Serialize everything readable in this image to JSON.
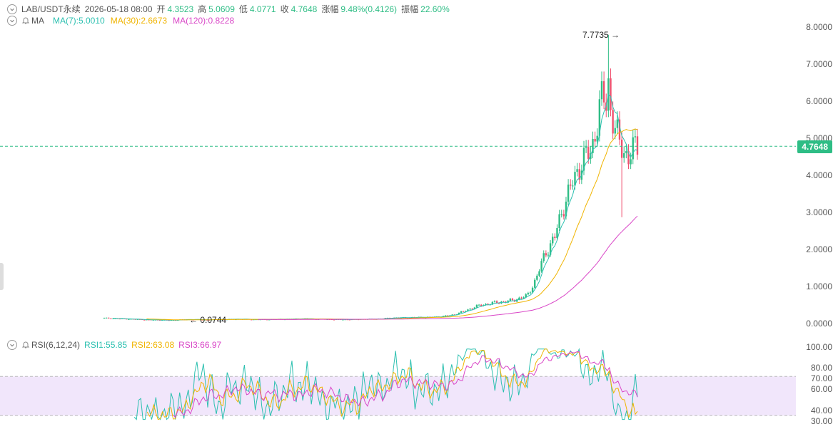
{
  "header": {
    "symbol": "LAB/USDT永续",
    "datetime": "2026-05-18 08:00",
    "open_label": "开",
    "open": "4.3523",
    "high_label": "高",
    "high": "5.0609",
    "low_label": "低",
    "low": "4.0771",
    "close_label": "收",
    "close": "4.7648",
    "change_label": "涨幅",
    "change": "9.48%(0.4126)",
    "amplitude_label": "振幅",
    "amplitude": "22.60%"
  },
  "ma": {
    "label": "MA",
    "ma7": "MA(7):5.0010",
    "ma30": "MA(30):2.6673",
    "ma120": "MA(120):0.8228"
  },
  "rsi": {
    "label": "RSI(6,12,24)",
    "rsi1": "RSI1:55.85",
    "rsi2": "RSI2:63.08",
    "rsi3": "RSI3:66.97"
  },
  "colors": {
    "up": "#2ebd85",
    "down": "#f0506e",
    "ma7": "#2cc0b0",
    "ma30": "#f0b400",
    "ma120": "#d946c7",
    "rsi_band": "#f1e6fb"
  },
  "chart_data": [
    {
      "type": "line",
      "title": "",
      "price_axis": [
        "8.0000",
        "7.0000",
        "6.0000",
        "5.0000",
        "4.0000",
        "3.0000",
        "2.0000",
        "1.0000",
        "0.0000"
      ],
      "ylim": [
        0,
        8
      ],
      "current_price": "4.7648",
      "annotations": {
        "high": "7.7735",
        "low": "0.0744"
      },
      "candles_close_approx": [
        0.13,
        0.12,
        0.11,
        0.1,
        0.09,
        0.08,
        0.08,
        0.07,
        0.08,
        0.09,
        0.09,
        0.08,
        0.09,
        0.09,
        0.1,
        0.1,
        0.09,
        0.09,
        0.09,
        0.1,
        0.1,
        0.11,
        0.11,
        0.1,
        0.1,
        0.09,
        0.09,
        0.09,
        0.1,
        0.1,
        0.11,
        0.13,
        0.14,
        0.14,
        0.15,
        0.15,
        0.16,
        0.18,
        0.22,
        0.3,
        0.4,
        0.48,
        0.52,
        0.56,
        0.58,
        0.65,
        0.72,
        1.2,
        1.9,
        2.3,
        3.2,
        3.8,
        4.4,
        4.6,
        6.0,
        5.9,
        4.8,
        4.5,
        4.7648
      ],
      "series": [
        {
          "name": "MA(7)",
          "last": 5.001
        },
        {
          "name": "MA(30)",
          "last": 2.6673
        },
        {
          "name": "MA(120)",
          "last": 0.8228
        }
      ]
    },
    {
      "type": "line",
      "title": "",
      "axis": [
        "100.00",
        "80.00",
        "70.00",
        "60.00",
        "40.00",
        "30.00"
      ],
      "ylim": [
        25,
        100
      ],
      "band": [
        30,
        70
      ],
      "series": [
        {
          "name": "RSI1",
          "last": 55.85
        },
        {
          "name": "RSI2",
          "last": 63.08
        },
        {
          "name": "RSI3",
          "last": 66.97
        }
      ]
    }
  ]
}
